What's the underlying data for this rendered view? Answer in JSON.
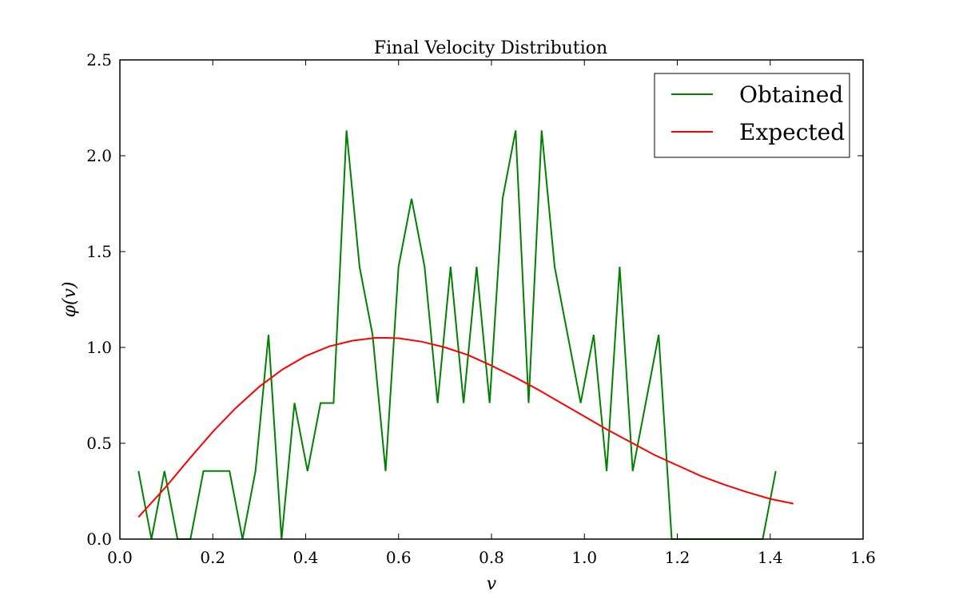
{
  "chart_data": {
    "type": "line",
    "title": "Final Velocity Distribution",
    "xlabel": "v",
    "ylabel": "φ(v)",
    "xlim": [
      0.0,
      1.6
    ],
    "ylim": [
      0.0,
      2.5
    ],
    "xticks": [
      "0.0",
      "0.2",
      "0.4",
      "0.6",
      "0.8",
      "1.0",
      "1.2",
      "1.4",
      "1.6"
    ],
    "yticks": [
      "0.0",
      "0.5",
      "1.0",
      "1.5",
      "2.0",
      "2.5"
    ],
    "grid": false,
    "legend_position": "top-right",
    "series": [
      {
        "name": "Obtained",
        "color": "#008000",
        "x": [
          0.04,
          0.068,
          0.096,
          0.124,
          0.152,
          0.18,
          0.208,
          0.236,
          0.264,
          0.292,
          0.32,
          0.348,
          0.376,
          0.404,
          0.432,
          0.46,
          0.488,
          0.516,
          0.544,
          0.572,
          0.6,
          0.628,
          0.656,
          0.684,
          0.712,
          0.74,
          0.768,
          0.796,
          0.824,
          0.852,
          0.88,
          0.908,
          0.936,
          0.964,
          0.992,
          1.02,
          1.048,
          1.076,
          1.104,
          1.132,
          1.16,
          1.188,
          1.216,
          1.244,
          1.272,
          1.3,
          1.328,
          1.356,
          1.384,
          1.412
        ],
        "y": [
          0.355,
          0.0,
          0.355,
          0.0,
          0.0,
          0.355,
          0.355,
          0.355,
          0.0,
          0.355,
          1.066,
          0.0,
          0.71,
          0.355,
          0.71,
          0.71,
          2.132,
          1.421,
          1.066,
          0.355,
          1.421,
          1.776,
          1.421,
          0.71,
          1.421,
          0.71,
          1.421,
          0.71,
          1.776,
          2.132,
          0.71,
          2.132,
          1.421,
          1.066,
          0.71,
          1.066,
          0.355,
          1.421,
          0.355,
          0.71,
          1.066,
          0.0,
          0.0,
          0.0,
          0.0,
          0.0,
          0.0,
          0.0,
          0.0,
          0.355
        ]
      },
      {
        "name": "Expected",
        "color": "#ff0000",
        "x": [
          0.04,
          0.1,
          0.15,
          0.2,
          0.25,
          0.3,
          0.35,
          0.4,
          0.45,
          0.5,
          0.55,
          0.575,
          0.6,
          0.65,
          0.7,
          0.75,
          0.8,
          0.85,
          0.9,
          0.95,
          1.0,
          1.05,
          1.1,
          1.15,
          1.2,
          1.25,
          1.3,
          1.35,
          1.4,
          1.45
        ],
        "y": [
          0.115,
          0.275,
          0.42,
          0.56,
          0.685,
          0.795,
          0.885,
          0.955,
          1.005,
          1.035,
          1.05,
          1.05,
          1.048,
          1.03,
          1.0,
          0.96,
          0.905,
          0.845,
          0.78,
          0.71,
          0.64,
          0.57,
          0.505,
          0.44,
          0.385,
          0.33,
          0.285,
          0.245,
          0.21,
          0.185
        ]
      }
    ]
  }
}
